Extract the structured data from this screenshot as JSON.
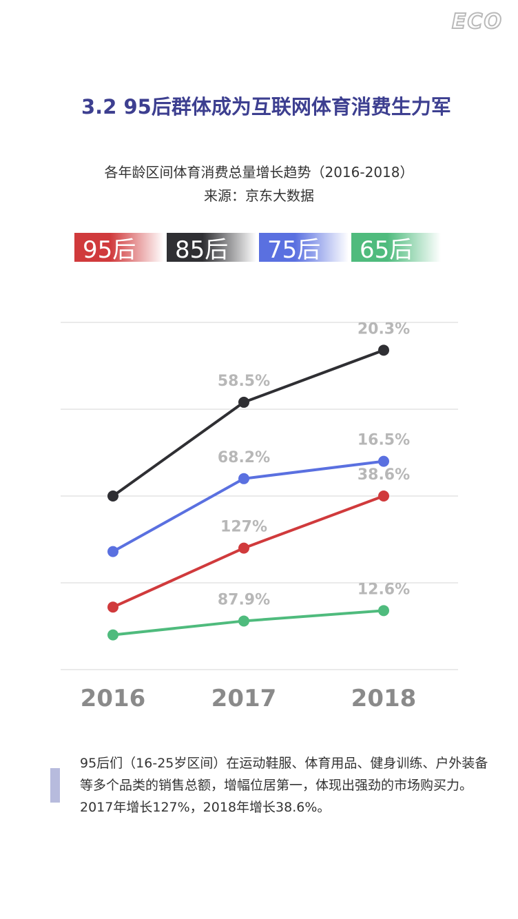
{
  "brand": {
    "logo_text": "ECO"
  },
  "section_title": "3.2  95后群体成为互联网体育消费生力军",
  "subtitle": {
    "line1": "各年龄区间体育消费总量增长趋势（2016-2018）",
    "line2": "来源：京东大数据"
  },
  "legend": [
    {
      "label": "95后",
      "color": "#d03a3c",
      "text_color": "#ffffff"
    },
    {
      "label": "85后",
      "color": "#2f2f33",
      "text_color": "#ffffff"
    },
    {
      "label": "75后",
      "color": "#5a70e0",
      "text_color": "#ffffff"
    },
    {
      "label": "65后",
      "color": "#4fbb7d",
      "text_color": "#ffffff"
    }
  ],
  "chart_data": {
    "type": "line",
    "title": "各年龄区间体育消费总量增长趋势（2016-2018）",
    "source": "来源：京东大数据",
    "categories": [
      "2016",
      "2017",
      "2018"
    ],
    "ylim": [
      0,
      100
    ],
    "grid": true,
    "series": [
      {
        "name": "85后",
        "color": "#2f2f33",
        "values": [
          50,
          77,
          92
        ],
        "labels": [
          "",
          "58.5%",
          "20.3%"
        ]
      },
      {
        "name": "75后",
        "color": "#5a70e0",
        "values": [
          34,
          55,
          60
        ],
        "labels": [
          "",
          "68.2%",
          "16.5%"
        ]
      },
      {
        "name": "95后",
        "color": "#d03a3c",
        "values": [
          18,
          35,
          50
        ],
        "labels": [
          "",
          "127%",
          "38.6%"
        ]
      },
      {
        "name": "65后",
        "color": "#4fbb7d",
        "values": [
          10,
          14,
          17
        ],
        "labels": [
          "",
          "87.9%",
          "12.6%"
        ]
      }
    ]
  },
  "description": "95后们（16-25岁区间）在运动鞋服、体育用品、健身训练、户外装备等多个品类的销售总额，增幅位居第一，体现出强劲的市场购买力。2017年增长127%，2018年增长38.6%。"
}
